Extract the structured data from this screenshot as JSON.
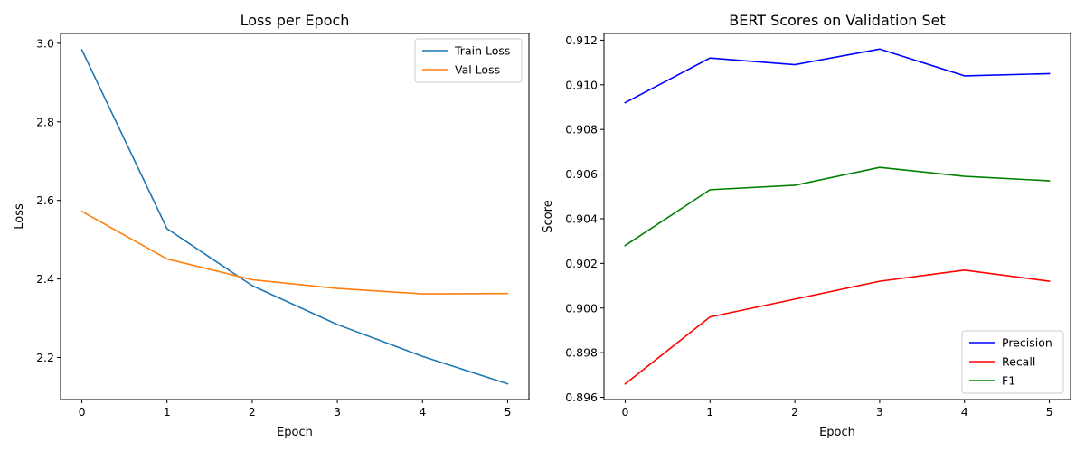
{
  "chart_data": [
    {
      "type": "line",
      "title": "Loss per Epoch",
      "xlabel": "Epoch",
      "ylabel": "Loss",
      "x": [
        0,
        1,
        2,
        3,
        4,
        5
      ],
      "xticks": [
        "0",
        "1",
        "2",
        "3",
        "4",
        "5"
      ],
      "yticks": [
        "2.2",
        "2.4",
        "2.6",
        "2.8",
        "3.0"
      ],
      "xlim": [
        -0.25,
        5.25
      ],
      "ylim": [
        2.093,
        3.025
      ],
      "legend_position": "top-right",
      "grid": false,
      "series": [
        {
          "name": "Train Loss",
          "color": "#1f77b4",
          "values": [
            2.983,
            2.528,
            2.383,
            2.284,
            2.203,
            2.133
          ]
        },
        {
          "name": "Val Loss",
          "color": "#ff7f0e",
          "values": [
            2.572,
            2.451,
            2.398,
            2.376,
            2.362,
            2.363
          ]
        }
      ]
    },
    {
      "type": "line",
      "title": "BERT Scores on Validation Set",
      "xlabel": "Epoch",
      "ylabel": "Score",
      "x": [
        0,
        1,
        2,
        3,
        4,
        5
      ],
      "xticks": [
        "0",
        "1",
        "2",
        "3",
        "4",
        "5"
      ],
      "yticks": [
        "0.896",
        "0.898",
        "0.900",
        "0.902",
        "0.904",
        "0.906",
        "0.908",
        "0.910",
        "0.912"
      ],
      "xlim": [
        -0.25,
        5.25
      ],
      "ylim": [
        0.8959,
        0.9123
      ],
      "legend_position": "bottom-right",
      "grid": false,
      "series": [
        {
          "name": "Precision",
          "color": "#0000ff",
          "values": [
            0.9092,
            0.9112,
            0.9109,
            0.9116,
            0.9104,
            0.9105
          ]
        },
        {
          "name": "Recall",
          "color": "#ff0000",
          "values": [
            0.8966,
            0.8996,
            0.9004,
            0.9012,
            0.9017,
            0.9012
          ]
        },
        {
          "name": "F1",
          "color": "#008000",
          "values": [
            0.9028,
            0.9053,
            0.9055,
            0.9063,
            0.9059,
            0.9057
          ]
        }
      ]
    }
  ]
}
